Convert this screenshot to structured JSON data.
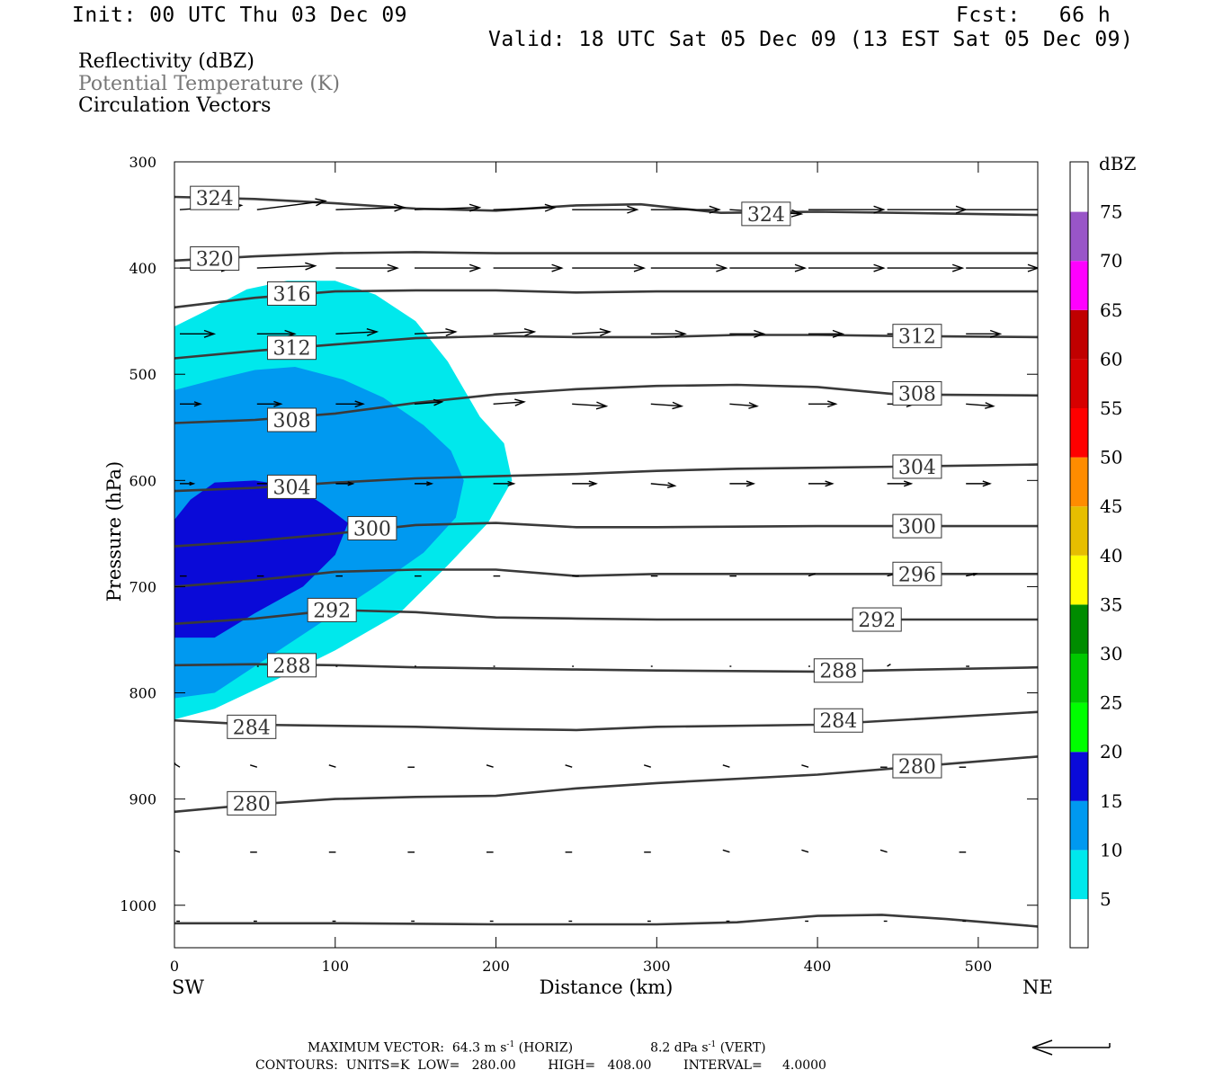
{
  "header": {
    "init": "Init: 00 UTC Thu 03 Dec 09",
    "fcst": "Fcst:   66 h",
    "valid": "Valid: 18 UTC Sat 05 Dec 09 (13 EST Sat 05 Dec 09)"
  },
  "fields": {
    "reflectivity": "Reflectivity (dBZ)",
    "theta": "Potential Temperature (K)",
    "vectors": "Circulation Vectors"
  },
  "footer": {
    "max_vector": "MAXIMUM VECTOR:  64.3 m s",
    "max_vector_exp": "-1",
    "max_vector_horiz": " (HORIZ)",
    "max_vector_vert": "8.2 dPa s",
    "max_vector_vert_exp": "-1",
    "max_vector_vert_tail": " (VERT)",
    "contours": "CONTOURS:  UNITS=K  LOW=   280.00        HIGH=   408.00        INTERVAL=     4.0000"
  },
  "colors": {
    "refl_5": "#00e8ec",
    "refl_10": "#0099f0",
    "refl_15": "#0a0ad8",
    "contour": "#3a3a3a"
  },
  "chart_data": {
    "type": "area",
    "xlabel": "Distance (km)",
    "ylabel": "Pressure (hPa)",
    "x_end_left": "SW",
    "x_end_right": "NE",
    "xlim": [
      0,
      537
    ],
    "ylim": [
      1040,
      300
    ],
    "x_ticks": [
      "0",
      "100",
      "200",
      "300",
      "400",
      "500"
    ],
    "y_ticks": [
      "300",
      "400",
      "500",
      "600",
      "700",
      "800",
      "900",
      "1000"
    ],
    "colorbar": {
      "unit": "dBZ",
      "levels": [
        "5",
        "10",
        "15",
        "20",
        "25",
        "30",
        "35",
        "40",
        "45",
        "50",
        "55",
        "60",
        "65",
        "70",
        "75"
      ],
      "colors": [
        "#00e8ec",
        "#0099f0",
        "#0a0ad8",
        "#00ff00",
        "#00c800",
        "#008c00",
        "#ffff00",
        "#e6be00",
        "#ff8c00",
        "#ff0000",
        "#d70000",
        "#c00000",
        "#ff00ff",
        "#9955c8",
        "#ffffff"
      ]
    },
    "reflectivity_regions": [
      {
        "level": 5,
        "color": "#00e8ec",
        "boundary": [
          [
            0,
            455
          ],
          [
            20,
            440
          ],
          [
            45,
            420
          ],
          [
            70,
            412
          ],
          [
            100,
            412
          ],
          [
            125,
            425
          ],
          [
            150,
            450
          ],
          [
            170,
            488
          ],
          [
            190,
            540
          ],
          [
            205,
            565
          ],
          [
            210,
            600
          ],
          [
            195,
            640
          ],
          [
            170,
            680
          ],
          [
            140,
            725
          ],
          [
            100,
            760
          ],
          [
            60,
            790
          ],
          [
            25,
            815
          ],
          [
            0,
            825
          ]
        ]
      },
      {
        "level": 10,
        "color": "#0099f0",
        "boundary": [
          [
            0,
            515
          ],
          [
            25,
            505
          ],
          [
            50,
            496
          ],
          [
            75,
            493
          ],
          [
            105,
            505
          ],
          [
            130,
            522
          ],
          [
            155,
            548
          ],
          [
            172,
            572
          ],
          [
            180,
            600
          ],
          [
            175,
            635
          ],
          [
            155,
            668
          ],
          [
            125,
            700
          ],
          [
            90,
            735
          ],
          [
            50,
            775
          ],
          [
            25,
            800
          ],
          [
            0,
            805
          ]
        ]
      },
      {
        "level": 15,
        "color": "#0a0ad8",
        "boundary": [
          [
            0,
            637
          ],
          [
            10,
            618
          ],
          [
            25,
            602
          ],
          [
            50,
            600
          ],
          [
            75,
            606
          ],
          [
            92,
            622
          ],
          [
            108,
            640
          ],
          [
            100,
            670
          ],
          [
            80,
            700
          ],
          [
            50,
            725
          ],
          [
            25,
            748
          ],
          [
            0,
            748
          ]
        ]
      }
    ],
    "theta_contours": [
      {
        "label": "324",
        "points": [
          [
            0,
            333
          ],
          [
            50,
            335
          ],
          [
            100,
            339
          ],
          [
            150,
            344
          ],
          [
            200,
            346
          ],
          [
            250,
            341
          ],
          [
            290,
            340
          ],
          [
            340,
            348
          ],
          [
            400,
            347
          ],
          [
            450,
            348
          ],
          [
            537,
            350
          ]
        ],
        "label_at": [
          [
            25,
            334
          ],
          [
            368,
            349
          ]
        ]
      },
      {
        "label": "320",
        "points": [
          [
            0,
            393
          ],
          [
            50,
            389
          ],
          [
            100,
            386
          ],
          [
            150,
            385
          ],
          [
            200,
            386
          ],
          [
            300,
            386
          ],
          [
            400,
            386
          ],
          [
            537,
            386
          ]
        ],
        "label_at": [
          [
            25,
            391
          ]
        ]
      },
      {
        "label": "316",
        "points": [
          [
            0,
            437
          ],
          [
            50,
            428
          ],
          [
            100,
            422
          ],
          [
            150,
            421
          ],
          [
            200,
            421
          ],
          [
            250,
            423
          ],
          [
            300,
            422
          ],
          [
            400,
            422
          ],
          [
            537,
            422
          ]
        ],
        "label_at": [
          [
            73,
            424
          ]
        ]
      },
      {
        "label": "312",
        "points": [
          [
            0,
            485
          ],
          [
            50,
            478
          ],
          [
            100,
            472
          ],
          [
            150,
            466
          ],
          [
            200,
            464
          ],
          [
            250,
            465
          ],
          [
            300,
            465
          ],
          [
            350,
            463
          ],
          [
            400,
            463
          ],
          [
            450,
            464
          ],
          [
            537,
            465
          ]
        ],
        "label_at": [
          [
            73,
            475
          ],
          [
            462,
            464
          ]
        ]
      },
      {
        "label": "308",
        "points": [
          [
            0,
            546
          ],
          [
            50,
            543
          ],
          [
            100,
            537
          ],
          [
            150,
            527
          ],
          [
            200,
            519
          ],
          [
            250,
            514
          ],
          [
            300,
            511
          ],
          [
            350,
            510
          ],
          [
            400,
            512
          ],
          [
            450,
            519
          ],
          [
            537,
            520
          ]
        ],
        "label_at": [
          [
            73,
            543
          ],
          [
            462,
            518
          ]
        ]
      },
      {
        "label": "304",
        "points": [
          [
            0,
            610
          ],
          [
            50,
            607
          ],
          [
            100,
            602
          ],
          [
            150,
            598
          ],
          [
            200,
            596
          ],
          [
            250,
            594
          ],
          [
            300,
            591
          ],
          [
            350,
            589
          ],
          [
            400,
            588
          ],
          [
            450,
            587
          ],
          [
            537,
            585
          ]
        ],
        "label_at": [
          [
            73,
            606
          ],
          [
            462,
            587
          ]
        ]
      },
      {
        "label": "300",
        "points": [
          [
            0,
            662
          ],
          [
            50,
            657
          ],
          [
            100,
            650
          ],
          [
            150,
            642
          ],
          [
            200,
            640
          ],
          [
            250,
            644
          ],
          [
            300,
            644
          ],
          [
            400,
            643
          ],
          [
            537,
            643
          ]
        ],
        "label_at": [
          [
            123,
            645
          ],
          [
            462,
            643
          ]
        ]
      },
      {
        "label": "296",
        "points": [
          [
            0,
            700
          ],
          [
            50,
            694
          ],
          [
            100,
            686
          ],
          [
            150,
            684
          ],
          [
            200,
            684
          ],
          [
            250,
            690
          ],
          [
            300,
            688
          ],
          [
            400,
            688
          ],
          [
            537,
            688
          ]
        ],
        "label_at": [
          [
            462,
            688
          ]
        ]
      },
      {
        "label": "292",
        "points": [
          [
            0,
            735
          ],
          [
            50,
            730
          ],
          [
            100,
            722
          ],
          [
            150,
            724
          ],
          [
            200,
            729
          ],
          [
            250,
            730
          ],
          [
            300,
            731
          ],
          [
            400,
            731
          ],
          [
            537,
            731
          ]
        ],
        "label_at": [
          [
            98,
            722
          ],
          [
            437,
            731
          ]
        ]
      },
      {
        "label": "288",
        "points": [
          [
            0,
            774
          ],
          [
            50,
            773
          ],
          [
            100,
            774
          ],
          [
            150,
            776
          ],
          [
            200,
            777
          ],
          [
            250,
            778
          ],
          [
            300,
            779
          ],
          [
            400,
            780
          ],
          [
            537,
            776
          ]
        ],
        "label_at": [
          [
            73,
            774
          ],
          [
            413,
            779
          ]
        ]
      },
      {
        "label": "284",
        "points": [
          [
            0,
            826
          ],
          [
            50,
            830
          ],
          [
            100,
            831
          ],
          [
            150,
            832
          ],
          [
            200,
            834
          ],
          [
            250,
            835
          ],
          [
            300,
            832
          ],
          [
            400,
            830
          ],
          [
            537,
            818
          ]
        ],
        "label_at": [
          [
            48,
            832
          ],
          [
            413,
            826
          ]
        ]
      },
      {
        "label": "280",
        "points": [
          [
            0,
            912
          ],
          [
            50,
            905
          ],
          [
            100,
            900
          ],
          [
            150,
            898
          ],
          [
            200,
            897
          ],
          [
            250,
            890
          ],
          [
            300,
            885
          ],
          [
            400,
            877
          ],
          [
            537,
            860
          ]
        ],
        "label_at": [
          [
            48,
            904
          ],
          [
            462,
            869
          ]
        ]
      },
      {
        "label": "",
        "points": [
          [
            0,
            1017
          ],
          [
            50,
            1017
          ],
          [
            100,
            1017
          ],
          [
            200,
            1018
          ],
          [
            300,
            1018
          ],
          [
            350,
            1016
          ],
          [
            400,
            1010
          ],
          [
            440,
            1009
          ],
          [
            480,
            1013
          ],
          [
            537,
            1020
          ]
        ],
        "label_at": []
      }
    ],
    "vectors": {
      "rows_hpa": [
        345,
        400,
        462,
        528,
        603,
        690,
        775,
        870,
        950,
        1015
      ],
      "cols_km": [
        0,
        48,
        97,
        146,
        195,
        244,
        293,
        342,
        391,
        440,
        489,
        537
      ],
      "u": [
        [
          36,
          40,
          40,
          38,
          36,
          38,
          40,
          42,
          44,
          46,
          48,
          36
        ],
        [
          30,
          34,
          36,
          38,
          40,
          42,
          44,
          44,
          44,
          44,
          42,
          40
        ],
        [
          20,
          22,
          24,
          24,
          24,
          22,
          20,
          20,
          20,
          20,
          20,
          18
        ],
        [
          12,
          14,
          16,
          16,
          18,
          20,
          18,
          16,
          16,
          16,
          16,
          14
        ],
        [
          8,
          10,
          10,
          10,
          12,
          14,
          14,
          14,
          14,
          14,
          14,
          12
        ],
        [
          4,
          4,
          4,
          4,
          4,
          4,
          4,
          4,
          4,
          5,
          6,
          5
        ],
        [
          0,
          1,
          1,
          1,
          1,
          1,
          1,
          1,
          1,
          2,
          2,
          2
        ],
        [
          -4,
          -4,
          -4,
          -4,
          -4,
          -4,
          -4,
          -4,
          -4,
          -4,
          -4,
          -2
        ],
        [
          -4,
          -4,
          -4,
          -4,
          -4,
          -4,
          -4,
          -4,
          -4,
          -4,
          -4,
          -2
        ],
        [
          -2,
          -2,
          -2,
          -2,
          -2,
          -2,
          -2,
          -2,
          -2,
          -2,
          -2,
          -2
        ]
      ],
      "w": [
        [
          2,
          4,
          1,
          1,
          1,
          0,
          0,
          -2,
          0,
          0,
          0,
          0
        ],
        [
          0,
          1,
          0,
          0,
          0,
          0,
          0,
          0,
          0,
          0,
          0,
          0
        ],
        [
          0,
          0,
          1,
          1,
          1,
          1,
          0,
          0,
          0,
          0,
          0,
          0
        ],
        [
          0,
          0,
          0,
          1,
          1,
          -1,
          -1,
          -1,
          0,
          0,
          -1,
          0
        ],
        [
          0,
          0,
          0,
          0,
          0,
          0,
          -1,
          0,
          0,
          0,
          0,
          0
        ],
        [
          0,
          0,
          0,
          0,
          0,
          0,
          0,
          0,
          1,
          1,
          1,
          0
        ],
        [
          0,
          0,
          0,
          0,
          0,
          0,
          0,
          0,
          0,
          1,
          0,
          0
        ],
        [
          2,
          1,
          1,
          0,
          1,
          1,
          1,
          1,
          1,
          0,
          0,
          0
        ],
        [
          1,
          0,
          0,
          0,
          0,
          0,
          0,
          1,
          1,
          1,
          0,
          0
        ],
        [
          0,
          0,
          0,
          0,
          0,
          0,
          0,
          0,
          0,
          0,
          0,
          0
        ]
      ]
    }
  }
}
